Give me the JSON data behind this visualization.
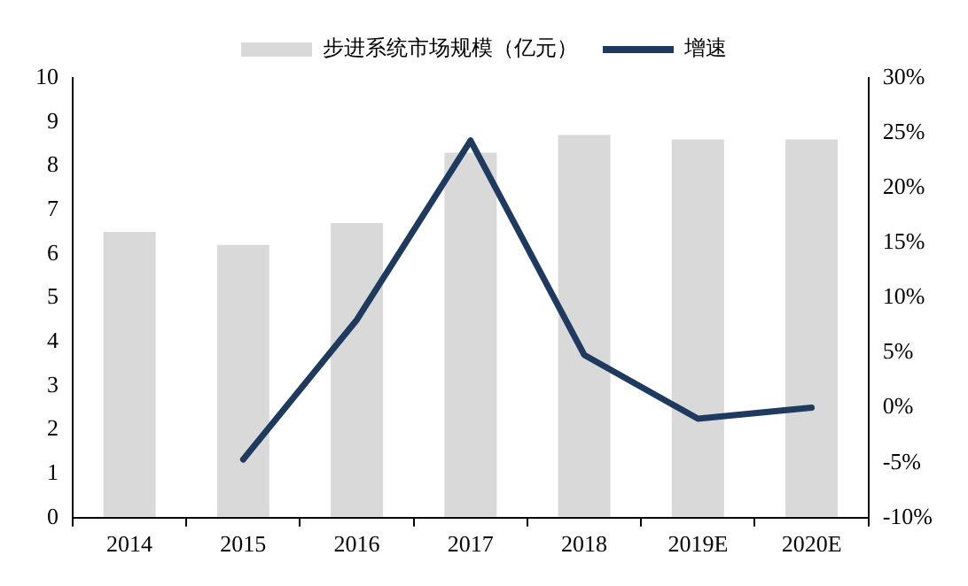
{
  "chart_data": {
    "type": "bar",
    "categories": [
      "2014",
      "2015",
      "2016",
      "2017",
      "2018",
      "2019E",
      "2020E"
    ],
    "series": [
      {
        "name": "步进系统市场规模（亿元）",
        "color": "#d9d9d9",
        "values": [
          6.5,
          6.2,
          6.7,
          8.3,
          8.7,
          8.6,
          8.6
        ]
      },
      {
        "name": "增速",
        "type": "line",
        "axis": "y2",
        "color": "#1f3a5f",
        "values": [
          null,
          -4.7,
          8,
          24.3,
          4.8,
          -1,
          0
        ]
      }
    ],
    "ylim": [
      0,
      10
    ],
    "yticks": [
      0,
      1,
      2,
      3,
      4,
      5,
      6,
      7,
      8,
      9,
      10
    ],
    "y2lim": [
      -10,
      30
    ],
    "y2ticks": [
      {
        "value": -10,
        "label": "-10%"
      },
      {
        "value": -5,
        "label": "-5%"
      },
      {
        "value": 0,
        "label": "0%"
      },
      {
        "value": 5,
        "label": "5%"
      },
      {
        "value": 10,
        "label": "10%"
      },
      {
        "value": 15,
        "label": "15%"
      },
      {
        "value": 20,
        "label": "20%"
      },
      {
        "value": 25,
        "label": "25%"
      },
      {
        "value": 30,
        "label": "30%"
      }
    ],
    "grid": false,
    "legend": "top",
    "marker": "none",
    "line_style": "solid"
  }
}
